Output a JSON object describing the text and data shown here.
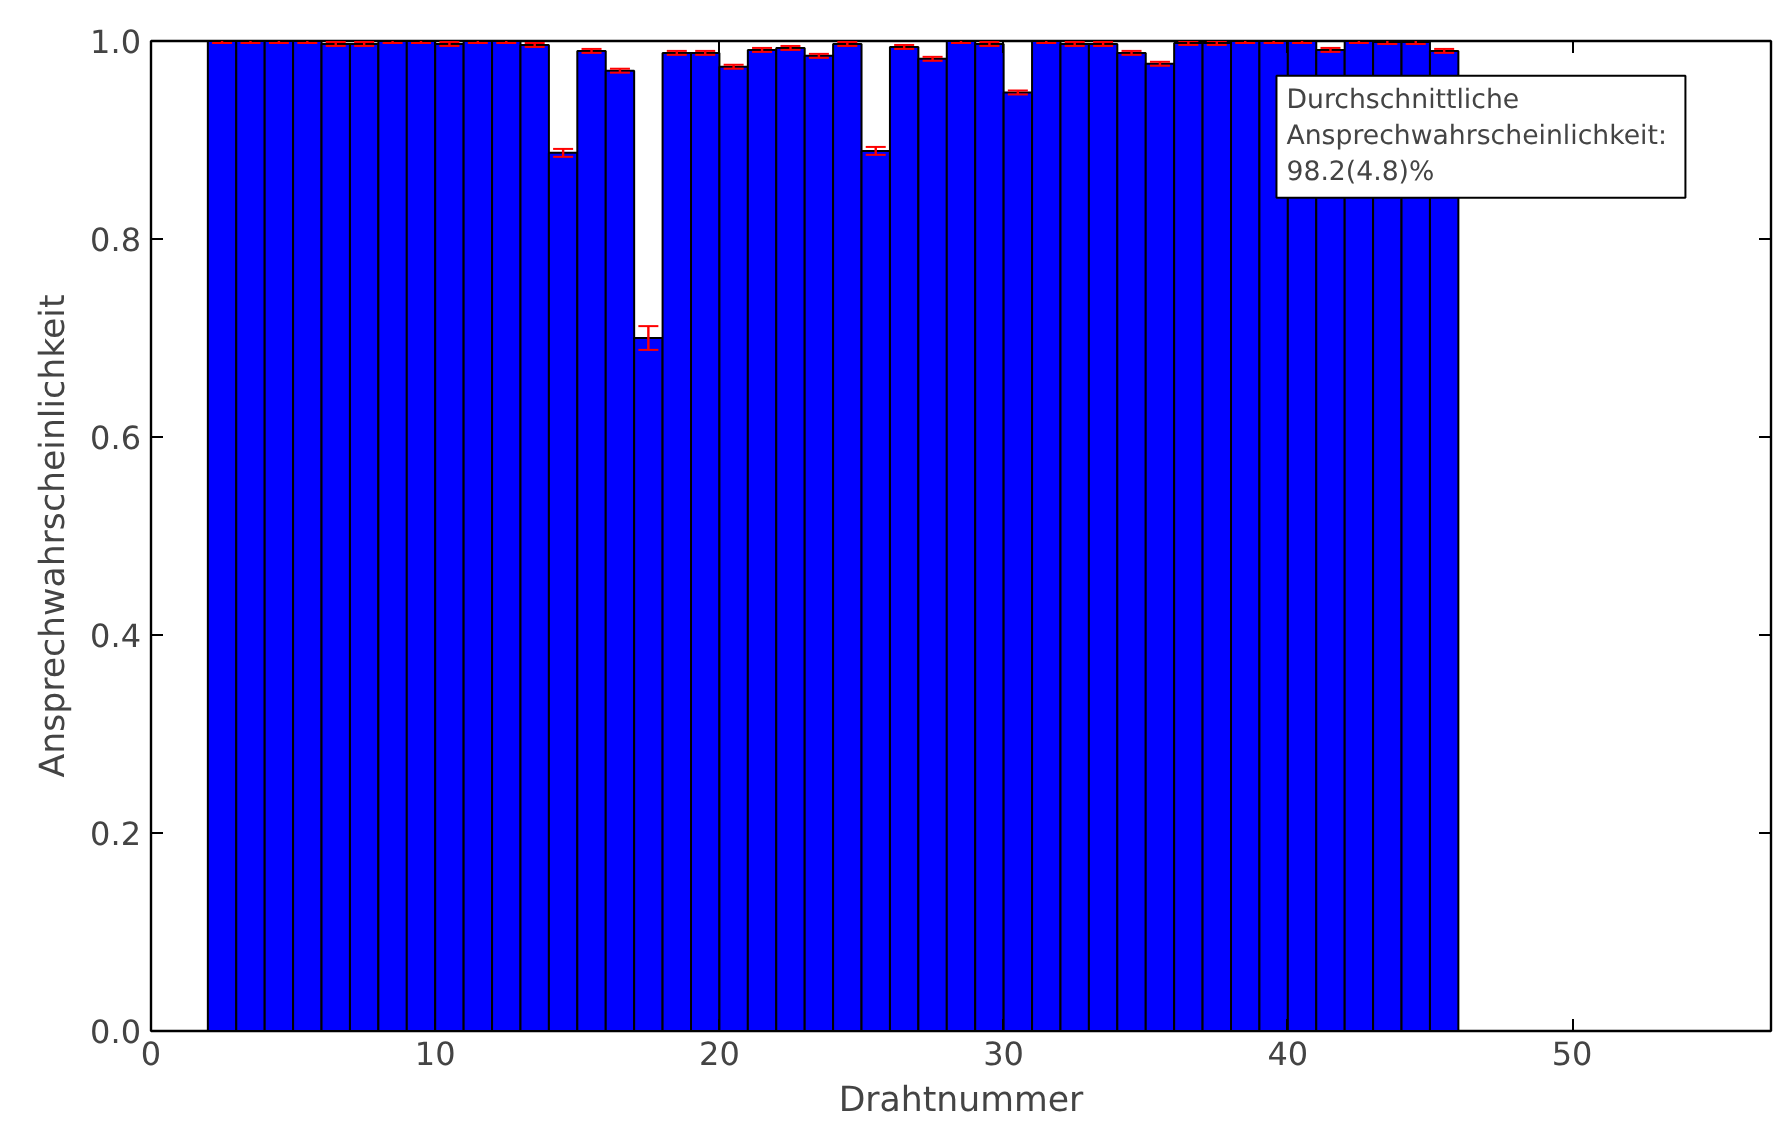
{
  "chart_data": {
    "type": "bar",
    "xlabel": "Drahtnummer",
    "ylabel": "Ansprechwahrscheinlichkeit",
    "x": [
      2.5,
      3.5,
      4.5,
      5.5,
      6.5,
      7.5,
      8.5,
      9.5,
      10.5,
      11.5,
      12.5,
      13.5,
      14.5,
      15.5,
      16.5,
      17.5,
      18.5,
      19.5,
      20.5,
      21.5,
      22.5,
      23.5,
      24.5,
      25.5,
      26.5,
      27.5,
      28.5,
      29.5,
      30.5,
      31.5,
      32.5,
      33.5,
      34.5,
      35.5,
      36.5,
      37.5,
      38.5,
      39.5,
      40.5,
      41.5,
      42.5,
      43.5,
      44.5,
      45.5
    ],
    "series": [
      {
        "color": "#0000ff",
        "values": [
          1.0,
          1.0,
          1.0,
          1.0,
          0.997,
          0.997,
          1.0,
          1.0,
          0.997,
          1.0,
          1.0,
          0.996,
          0.887,
          0.99,
          0.97,
          0.7,
          0.988,
          0.988,
          0.974,
          0.991,
          0.993,
          0.985,
          0.997,
          0.889,
          0.994,
          0.982,
          1.0,
          0.997,
          0.948,
          1.0,
          0.997,
          0.997,
          0.988,
          0.977,
          0.998,
          0.998,
          1.0,
          1.0,
          1.0,
          0.991,
          1.0,
          0.999,
          0.999,
          0.99
        ],
        "errors": [
          0.002,
          0.002,
          0.002,
          0.002,
          0.002,
          0.002,
          0.002,
          0.002,
          0.002,
          0.002,
          0.002,
          0.002,
          0.004,
          0.002,
          0.002,
          0.012,
          0.002,
          0.002,
          0.002,
          0.002,
          0.002,
          0.002,
          0.002,
          0.004,
          0.002,
          0.002,
          0.002,
          0.002,
          0.002,
          0.002,
          0.002,
          0.002,
          0.002,
          0.002,
          0.002,
          0.002,
          0.002,
          0.002,
          0.002,
          0.002,
          0.002,
          0.002,
          0.002,
          0.002
        ]
      }
    ],
    "xlim": [
      0,
      57
    ],
    "xticks": [
      0,
      10,
      20,
      30,
      40,
      50
    ],
    "ylim": [
      0,
      1.0
    ],
    "yticks": [
      {
        "value": 0,
        "label": "0.0"
      },
      {
        "value": 0.2,
        "label": "0.2"
      },
      {
        "value": 0.4,
        "label": "0.4"
      },
      {
        "value": 0.6,
        "label": "0.6"
      },
      {
        "value": 0.8,
        "label": "0.8"
      },
      {
        "value": 1.0,
        "label": "1.0"
      }
    ],
    "grid": false,
    "annotations": [
      "Durchschnittliche\n Ansprechwahrscheinlichkeit:\n 98.2(4.8)%"
    ]
  }
}
